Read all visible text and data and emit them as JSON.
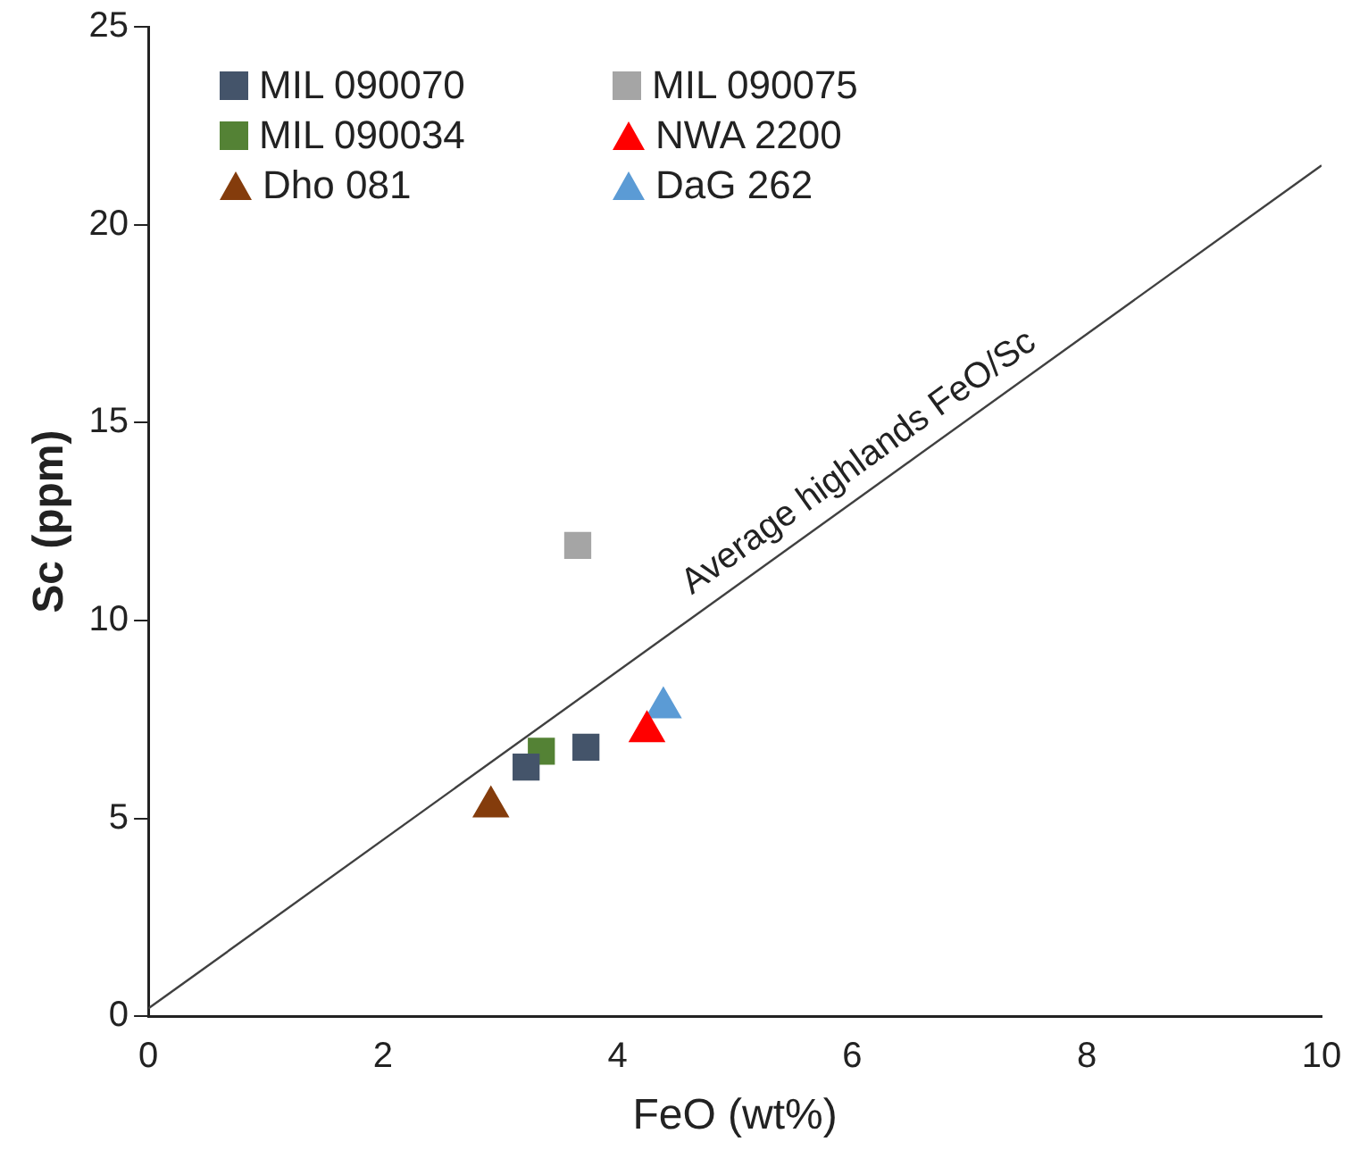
{
  "chart_data": {
    "type": "scatter",
    "xlabel": "FeO (wt%)",
    "ylabel": "Sc (ppm)",
    "xlim": [
      0,
      10
    ],
    "xticks": [
      0,
      2,
      4,
      6,
      8,
      10
    ],
    "ylim": [
      0,
      25
    ],
    "yticks": [
      0,
      5,
      10,
      15,
      20,
      25
    ],
    "grid": false,
    "legend": "top left",
    "series": [
      {
        "name": "MIL 090070",
        "color": "#44546a",
        "marker": "square",
        "x": [
          3.22,
          3.73
        ],
        "values": [
          6.3,
          6.8
        ]
      },
      {
        "name": "MIL 090075",
        "color": "#a5a5a5",
        "marker": "square",
        "x": [
          3.66
        ],
        "values": [
          11.9
        ]
      },
      {
        "name": "MIL 090034",
        "color": "#548235",
        "marker": "square",
        "x": [
          3.35
        ],
        "values": [
          6.7
        ]
      },
      {
        "name": "NWA 2200",
        "color": "#ff0000",
        "marker": "triangle",
        "x": [
          4.25
        ],
        "values": [
          7.2
        ]
      },
      {
        "name": "Dho 081",
        "color": "#843c0c",
        "marker": "triangle",
        "x": [
          2.92
        ],
        "values": [
          5.3
        ]
      },
      {
        "name": "DaG 262",
        "color": "#5b9bd5",
        "marker": "triangle",
        "x": [
          4.39
        ],
        "values": [
          7.8
        ]
      },
      {
        "type": "line",
        "color": "#404040",
        "marker": "none",
        "x": [
          0,
          10
        ],
        "values": [
          0.2,
          21.5
        ]
      }
    ],
    "annotations": [
      {
        "text": "Average highlands FeO/Sc",
        "x": 6.2,
        "y": 13.4
      }
    ]
  }
}
